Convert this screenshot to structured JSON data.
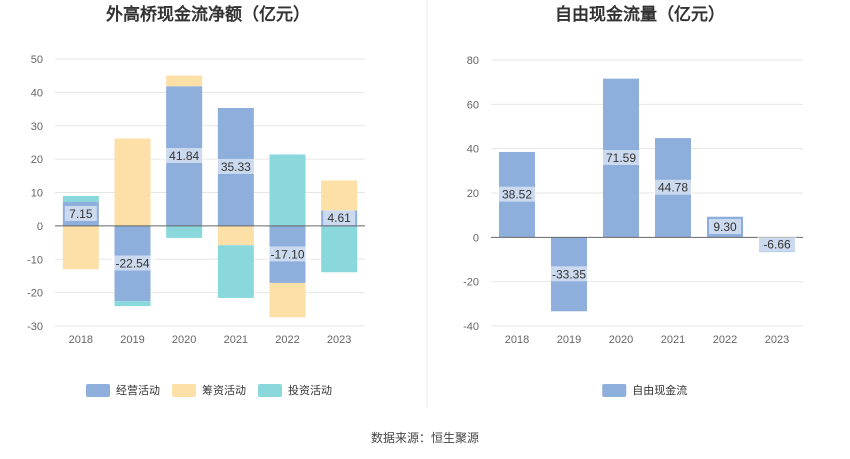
{
  "colors": {
    "operating": "#8eaedc",
    "financing": "#fddfa8",
    "investing": "#8ad8dc",
    "fcf": "#8eaedc",
    "grid": "#e6e6e6",
    "axis": "#666666",
    "divider": "#e8e8e8"
  },
  "source": "数据来源：恒生聚源",
  "chart_data": [
    {
      "type": "bar",
      "stacked": true,
      "title": "外高桥现金流净额（亿元）",
      "categories": [
        "2018",
        "2019",
        "2020",
        "2021",
        "2022",
        "2023"
      ],
      "ylim": [
        -30,
        50
      ],
      "yticks": [
        -30,
        -20,
        -10,
        0,
        10,
        20,
        30,
        40,
        50
      ],
      "grid": true,
      "legend_position": "bottom",
      "series": [
        {
          "name": "经营活动",
          "color_key": "operating",
          "values": [
            7.15,
            -22.54,
            41.84,
            35.33,
            -17.1,
            4.61
          ]
        },
        {
          "name": "筹资活动",
          "color_key": "financing",
          "values": [
            -13.0,
            26.2,
            3.2,
            -5.8,
            -10.3,
            9.0
          ]
        },
        {
          "name": "投资活动",
          "color_key": "investing",
          "values": [
            1.8,
            -1.5,
            -3.6,
            -15.8,
            21.4,
            -13.9
          ]
        }
      ],
      "data_labels": [
        "7.15",
        "-22.54",
        "41.84",
        "35.33",
        "-17.10",
        "4.61"
      ]
    },
    {
      "type": "bar",
      "title": "自由现金流量（亿元）",
      "categories": [
        "2018",
        "2019",
        "2020",
        "2021",
        "2022",
        "2023"
      ],
      "ylim": [
        -40,
        80
      ],
      "yticks": [
        -40,
        -20,
        0,
        20,
        40,
        60,
        80
      ],
      "grid": true,
      "legend_position": "bottom",
      "series": [
        {
          "name": "自由现金流",
          "color_key": "fcf",
          "values": [
            38.52,
            -33.35,
            71.59,
            44.78,
            9.3,
            -6.66
          ]
        }
      ],
      "data_labels": [
        "38.52",
        "-33.35",
        "71.59",
        "44.78",
        "9.30",
        "-6.66"
      ]
    }
  ]
}
